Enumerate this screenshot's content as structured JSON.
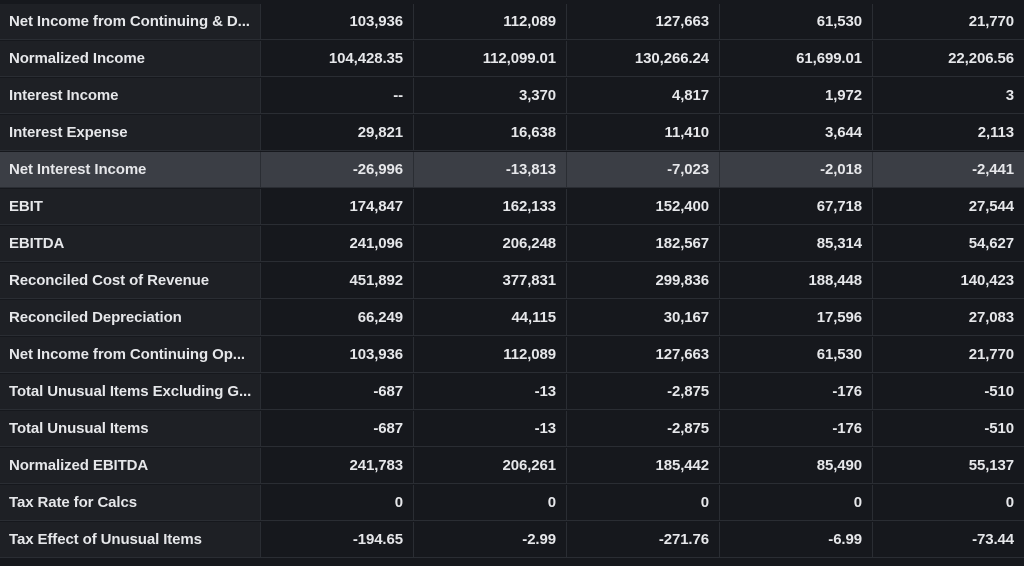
{
  "rows": [
    {
      "label": "Net Income from Continuing & D...",
      "values": [
        "103,936",
        "112,089",
        "127,663",
        "61,530",
        "21,770"
      ]
    },
    {
      "label": "Normalized Income",
      "values": [
        "104,428.35",
        "112,099.01",
        "130,266.24",
        "61,699.01",
        "22,206.56"
      ]
    },
    {
      "label": "Interest Income",
      "values": [
        "--",
        "3,370",
        "4,817",
        "1,972",
        "3"
      ]
    },
    {
      "label": "Interest Expense",
      "values": [
        "29,821",
        "16,638",
        "11,410",
        "3,644",
        "2,113"
      ]
    },
    {
      "label": "Net Interest Income",
      "values": [
        "-26,996",
        "-13,813",
        "-7,023",
        "-2,018",
        "-2,441"
      ]
    },
    {
      "label": "EBIT",
      "values": [
        "174,847",
        "162,133",
        "152,400",
        "67,718",
        "27,544"
      ]
    },
    {
      "label": "EBITDA",
      "values": [
        "241,096",
        "206,248",
        "182,567",
        "85,314",
        "54,627"
      ]
    },
    {
      "label": "Reconciled Cost of Revenue",
      "values": [
        "451,892",
        "377,831",
        "299,836",
        "188,448",
        "140,423"
      ]
    },
    {
      "label": "Reconciled Depreciation",
      "values": [
        "66,249",
        "44,115",
        "30,167",
        "17,596",
        "27,083"
      ]
    },
    {
      "label": "Net Income from Continuing Op...",
      "values": [
        "103,936",
        "112,089",
        "127,663",
        "61,530",
        "21,770"
      ]
    },
    {
      "label": "Total Unusual Items Excluding G...",
      "values": [
        "-687",
        "-13",
        "-2,875",
        "-176",
        "-510"
      ]
    },
    {
      "label": "Total Unusual Items",
      "values": [
        "-687",
        "-13",
        "-2,875",
        "-176",
        "-510"
      ]
    },
    {
      "label": "Normalized EBITDA",
      "values": [
        "241,783",
        "206,261",
        "185,442",
        "85,490",
        "55,137"
      ]
    },
    {
      "label": "Tax Rate for Calcs",
      "values": [
        "0",
        "0",
        "0",
        "0",
        "0"
      ]
    },
    {
      "label": "Tax Effect of Unusual Items",
      "values": [
        "-194.65",
        "-2.99",
        "-271.76",
        "-6.99",
        "-73.44"
      ]
    }
  ]
}
